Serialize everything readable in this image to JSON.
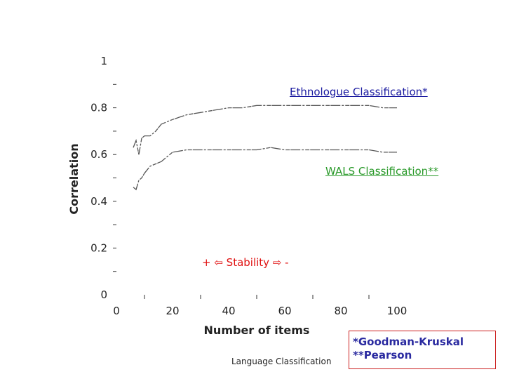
{
  "chart_data": {
    "type": "line",
    "title": "",
    "xlabel": "Number of items",
    "ylabel": "Correlation",
    "xlim": [
      0,
      100
    ],
    "ylim": [
      0,
      1
    ],
    "x_ticks": [
      "0",
      "20",
      "40",
      "60",
      "80",
      "100"
    ],
    "y_ticks": [
      "0",
      "0.2",
      "0.4",
      "0.6",
      "0.8",
      "1"
    ],
    "series": [
      {
        "name": "Ethnologue Classification*",
        "color": "#555555",
        "x": [
          6,
          7,
          8,
          9,
          10,
          12,
          14,
          16,
          18,
          20,
          25,
          30,
          35,
          40,
          45,
          50,
          55,
          60,
          65,
          70,
          75,
          80,
          85,
          90,
          95,
          100
        ],
        "y": [
          0.63,
          0.66,
          0.6,
          0.67,
          0.68,
          0.68,
          0.7,
          0.73,
          0.74,
          0.75,
          0.77,
          0.78,
          0.79,
          0.8,
          0.8,
          0.81,
          0.81,
          0.81,
          0.81,
          0.81,
          0.81,
          0.81,
          0.81,
          0.81,
          0.8,
          0.8
        ]
      },
      {
        "name": "WALS Classification**",
        "color": "#555555",
        "x": [
          6,
          7,
          8,
          9,
          10,
          12,
          14,
          16,
          18,
          20,
          25,
          30,
          35,
          40,
          45,
          50,
          55,
          60,
          65,
          70,
          75,
          80,
          85,
          90,
          95,
          100
        ],
        "y": [
          0.46,
          0.45,
          0.49,
          0.5,
          0.52,
          0.55,
          0.56,
          0.57,
          0.59,
          0.61,
          0.62,
          0.62,
          0.62,
          0.62,
          0.62,
          0.62,
          0.63,
          0.62,
          0.62,
          0.62,
          0.62,
          0.62,
          0.62,
          0.62,
          0.61,
          0.61
        ]
      }
    ]
  },
  "annotations": {
    "ethnologue_label": "Ethnologue Classification*",
    "wals_label": "WALS Classification**",
    "stability": "+ ⇦ Stability ⇨ -",
    "caption": "Language Classification",
    "footnote_1": "*Goodman-Kruskal",
    "footnote_2": "**Pearson"
  },
  "colors": {
    "ethnologue_label": "#1a1aa0",
    "wals_label": "#2a9a2a",
    "stability": "#e01010",
    "footnote_text": "#2a2aa0",
    "footnote_border": "#cc2020"
  }
}
